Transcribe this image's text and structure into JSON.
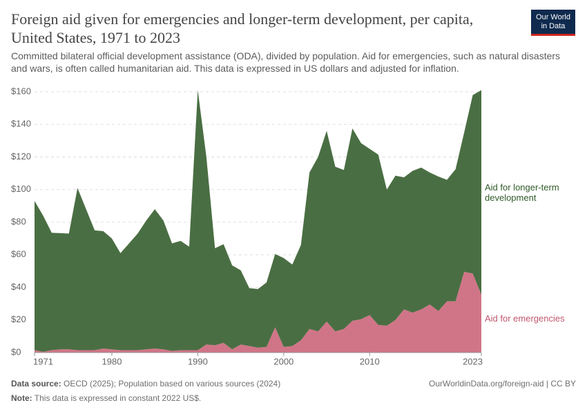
{
  "chart_data": {
    "type": "stacked-area",
    "title": "Foreign aid given for emergencies and longer-term development, per capita, United States, 1971 to 2023",
    "subtitle": "Committed bilateral official development assistance (ODA), divided by population. Aid for emergencies, such as natural disasters and wars, is often called humanitarian aid. This data is expressed in US dollars and adjusted for inflation.",
    "logo": "Our World in Data",
    "x": [
      1971,
      1972,
      1973,
      1974,
      1975,
      1976,
      1977,
      1978,
      1979,
      1980,
      1981,
      1982,
      1983,
      1984,
      1985,
      1986,
      1987,
      1988,
      1989,
      1990,
      1991,
      1992,
      1993,
      1994,
      1995,
      1996,
      1997,
      1998,
      1999,
      2000,
      2001,
      2002,
      2003,
      2004,
      2005,
      2006,
      2007,
      2008,
      2009,
      2010,
      2011,
      2012,
      2013,
      2014,
      2015,
      2016,
      2017,
      2018,
      2019,
      2020,
      2021,
      2022,
      2023
    ],
    "xlim": [
      1971,
      2023
    ],
    "xticks": [
      1971,
      1980,
      1990,
      2000,
      2010,
      2023
    ],
    "ylim": [
      0,
      160
    ],
    "yticks": [
      {
        "value": 0,
        "label": "$0"
      },
      {
        "value": 20,
        "label": "$20"
      },
      {
        "value": 40,
        "label": "$40"
      },
      {
        "value": 60,
        "label": "$60"
      },
      {
        "value": 80,
        "label": "$80"
      },
      {
        "value": 100,
        "label": "$100"
      },
      {
        "value": 120,
        "label": "$120"
      },
      {
        "value": 140,
        "label": "$140"
      },
      {
        "value": 160,
        "label": "$160"
      }
    ],
    "grid": true,
    "series": [
      {
        "name": "Aid for emergencies",
        "color": "#d07587",
        "label_color": "#c0566d",
        "values": [
          1.5,
          0.5,
          1.5,
          2,
          2,
          1.5,
          1.5,
          1.5,
          2.5,
          2,
          1.5,
          1.5,
          1.5,
          2,
          2.5,
          2,
          1,
          1.5,
          1.5,
          1.5,
          5,
          4.5,
          6,
          2,
          5,
          4,
          3,
          3.5,
          15.5,
          3.5,
          4,
          7.5,
          14.5,
          13,
          19,
          13,
          14.5,
          19.5,
          20.5,
          23,
          17,
          16.5,
          20,
          26.5,
          24.5,
          26.5,
          29.5,
          25.5,
          31.5,
          31.5,
          49.5,
          48.5,
          35.5
        ]
      },
      {
        "name": "Aid for longer-term development",
        "color": "#4a6e43",
        "label_color": "#2f5a28",
        "values": [
          91.5,
          83.5,
          72,
          71.3,
          71,
          99.5,
          86.5,
          73.5,
          72,
          68,
          59.5,
          65.5,
          71.5,
          79,
          85.5,
          79,
          66,
          67,
          63.5,
          159.5,
          115,
          59.5,
          60.5,
          51.5,
          45.5,
          35.5,
          36,
          39.5,
          45,
          54.5,
          50,
          58.5,
          96,
          107,
          117,
          101,
          97.5,
          118,
          108,
          102,
          104.5,
          83.5,
          88.5,
          81,
          87,
          87,
          81,
          82.5,
          74.5,
          81,
          85.5,
          109.5,
          125.5
        ]
      }
    ],
    "footer": {
      "source_label": "Data source:",
      "source": "OECD (2025); Population based on various sources (2024)",
      "url": "OurWorldinData.org/foreign-aid | CC BY",
      "note_label": "Note:",
      "note": "This data is expressed in constant 2022 US$."
    }
  }
}
